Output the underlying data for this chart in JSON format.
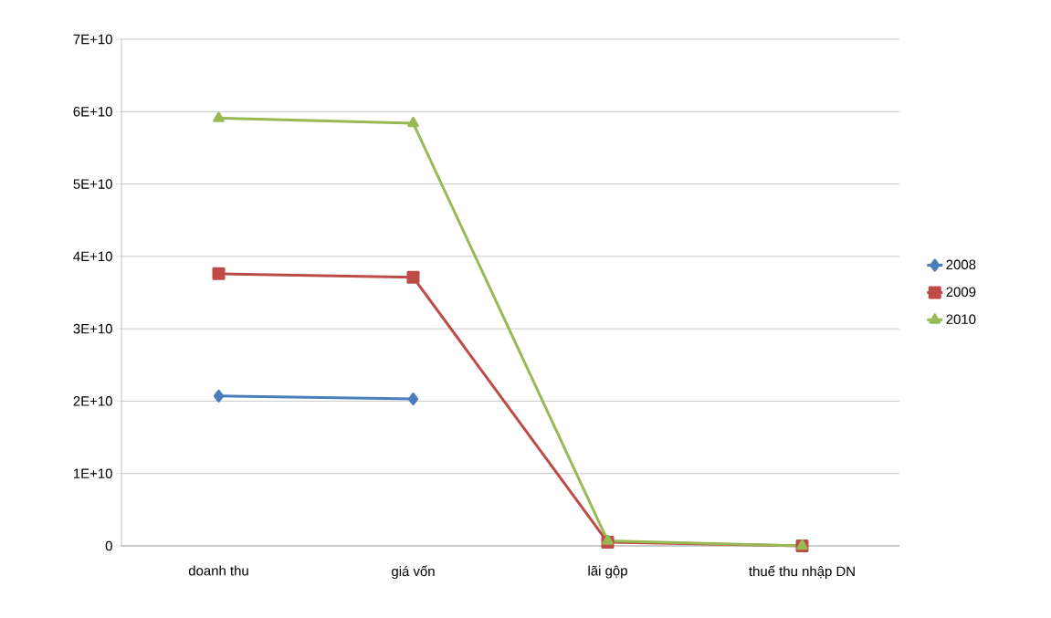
{
  "chart_data": {
    "type": "line",
    "categories": [
      "doanh thu",
      "giá vốn",
      "lãi gộp",
      "thuế thu nhập DN"
    ],
    "series": [
      {
        "name": "2008",
        "color": "#4a7ebb",
        "marker": "diamond",
        "values": [
          20700000000,
          20300000000,
          null,
          null
        ]
      },
      {
        "name": "2009",
        "color": "#be4b48",
        "marker": "square",
        "values": [
          37600000000,
          37100000000,
          500000000,
          0
        ]
      },
      {
        "name": "2010",
        "color": "#98b954",
        "marker": "triangle",
        "values": [
          59100000000,
          58400000000,
          700000000,
          0
        ]
      }
    ],
    "ylim": [
      0,
      70000000000
    ],
    "yticks": [
      0,
      {
        "value": 10000000000,
        "label": "1E+10"
      },
      {
        "value": 20000000000,
        "label": "2E+10"
      },
      {
        "value": 30000000000,
        "label": "3E+10"
      },
      {
        "value": 40000000000,
        "label": "4E+10"
      },
      {
        "value": 50000000000,
        "label": "5E+10"
      },
      {
        "value": 60000000000,
        "label": "6E+10"
      },
      {
        "value": 70000000000,
        "label": "7E+10"
      }
    ],
    "grid": "y",
    "legend": "right",
    "line_style": "solid"
  }
}
